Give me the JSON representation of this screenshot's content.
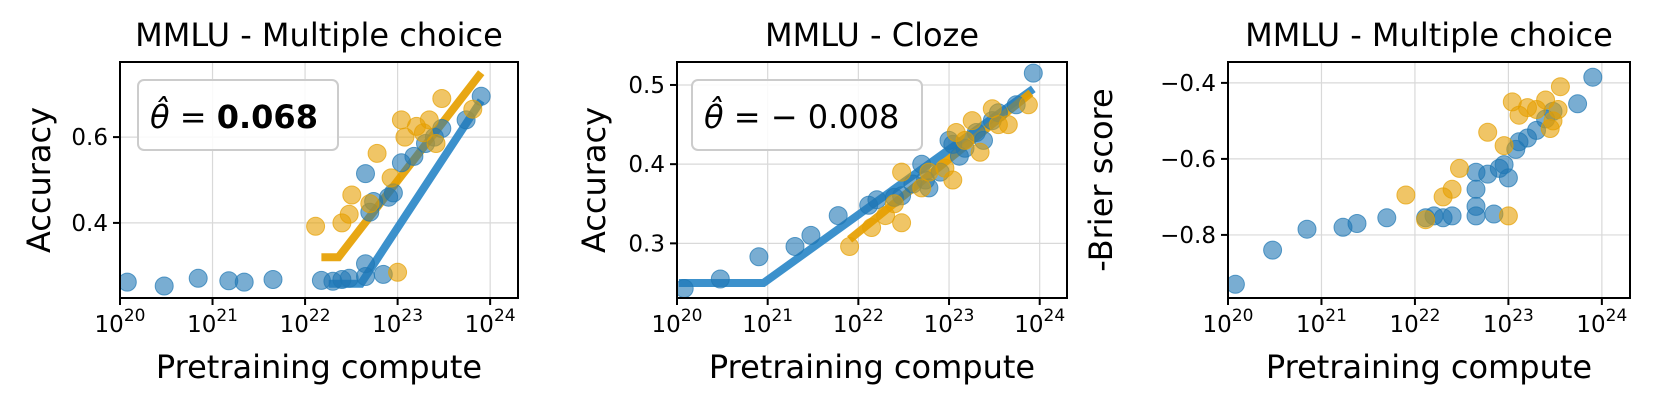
{
  "colors": {
    "series_a": "#1f77b4",
    "series_b": "#e69f00",
    "fit_a": "#2b88c8",
    "fit_b": "#e69f00"
  },
  "xticks": [
    {
      "exp": 20,
      "base": "10",
      "sup": "20"
    },
    {
      "exp": 21,
      "base": "10",
      "sup": "21"
    },
    {
      "exp": 22,
      "base": "10",
      "sup": "22"
    },
    {
      "exp": 23,
      "base": "10",
      "sup": "23"
    },
    {
      "exp": 24,
      "base": "10",
      "sup": "24"
    }
  ],
  "chart_data": [
    {
      "type": "scatter",
      "title": "MMLU - Multiple choice",
      "xlabel": "Pretraining compute",
      "ylabel": "Accuracy",
      "xscale": "log",
      "xlim": [
        1e+20,
        2e+24
      ],
      "ylim": [
        0.225,
        0.775
      ],
      "yticks": [
        {
          "v": 0.4,
          "label": "0.4"
        },
        {
          "v": 0.6,
          "label": "0.6"
        }
      ],
      "grid": true,
      "annotation": {
        "prefix": "θ̂ = ",
        "value": "0.068",
        "bold": true
      },
      "series": [
        {
          "color": "series_a",
          "points": [
            [
              1.2e+20,
              0.262
            ],
            [
              3e+20,
              0.253
            ],
            [
              7e+20,
              0.271
            ],
            [
              1.5e+21,
              0.265
            ],
            [
              2.2e+21,
              0.262
            ],
            [
              4.5e+21,
              0.268
            ],
            [
              1.5e+22,
              0.266
            ],
            [
              2e+22,
              0.264
            ],
            [
              2.5e+22,
              0.268
            ],
            [
              3e+22,
              0.271
            ],
            [
              4.5e+22,
              0.515
            ],
            [
              4.5e+22,
              0.305
            ],
            [
              4.5e+22,
              0.275
            ],
            [
              5e+22,
              0.425
            ],
            [
              5.5e+22,
              0.45
            ],
            [
              7e+22,
              0.28
            ],
            [
              8e+22,
              0.46
            ],
            [
              9e+22,
              0.47
            ],
            [
              1.1e+23,
              0.54
            ],
            [
              1.5e+23,
              0.555
            ],
            [
              2e+23,
              0.585
            ],
            [
              2.5e+23,
              0.6
            ],
            [
              3e+23,
              0.62
            ],
            [
              5.5e+23,
              0.64
            ],
            [
              8e+23,
              0.695
            ]
          ],
          "fit": [
            [
              1.8e+22,
              0.258
            ],
            [
              4e+22,
              0.258
            ],
            [
              8e+23,
              0.685
            ]
          ]
        },
        {
          "color": "series_b",
          "points": [
            [
              1.3e+22,
              0.392
            ],
            [
              2.5e+22,
              0.4
            ],
            [
              3e+22,
              0.42
            ],
            [
              3.2e+22,
              0.465
            ],
            [
              5e+22,
              0.445
            ],
            [
              6e+22,
              0.562
            ],
            [
              8.5e+22,
              0.505
            ],
            [
              1e+23,
              0.285
            ],
            [
              1.1e+23,
              0.64
            ],
            [
              1.2e+23,
              0.6
            ],
            [
              1.6e+23,
              0.625
            ],
            [
              1.9e+23,
              0.61
            ],
            [
              2.2e+23,
              0.64
            ],
            [
              2.6e+23,
              0.585
            ],
            [
              3e+23,
              0.69
            ],
            [
              6.5e+23,
              0.665
            ]
          ],
          "fit": [
            [
              1.5e+22,
              0.32
            ],
            [
              2.3e+22,
              0.32
            ],
            [
              8e+23,
              0.75
            ]
          ]
        }
      ]
    },
    {
      "type": "scatter",
      "title": "MMLU - Cloze",
      "xlabel": "Pretraining compute",
      "ylabel": "Accuracy",
      "xscale": "log",
      "xlim": [
        1e+20,
        2e+24
      ],
      "ylim": [
        0.231,
        0.529
      ],
      "yticks": [
        {
          "v": 0.3,
          "label": "0.3"
        },
        {
          "v": 0.4,
          "label": "0.4"
        },
        {
          "v": 0.5,
          "label": "0.5"
        }
      ],
      "grid": true,
      "annotation": {
        "prefix": "θ̂ = ",
        "value": "− 0.008",
        "bold": false
      },
      "series": [
        {
          "color": "series_a",
          "points": [
            [
              1.2e+20,
              0.243
            ],
            [
              3e+20,
              0.255
            ],
            [
              8e+20,
              0.283
            ],
            [
              2e+21,
              0.296
            ],
            [
              3e+21,
              0.31
            ],
            [
              6e+21,
              0.335
            ],
            [
              1.3e+22,
              0.348
            ],
            [
              1.6e+22,
              0.355
            ],
            [
              2.5e+22,
              0.358
            ],
            [
              3e+22,
              0.36
            ],
            [
              4e+22,
              0.375
            ],
            [
              5e+22,
              0.4
            ],
            [
              5.5e+22,
              0.38
            ],
            [
              6e+22,
              0.37
            ],
            [
              8e+22,
              0.39
            ],
            [
              1e+23,
              0.43
            ],
            [
              1.1e+23,
              0.425
            ],
            [
              1.3e+23,
              0.41
            ],
            [
              1.5e+23,
              0.42
            ],
            [
              2e+23,
              0.44
            ],
            [
              2.4e+23,
              0.43
            ],
            [
              3e+23,
              0.455
            ],
            [
              3.5e+23,
              0.465
            ],
            [
              5.5e+23,
              0.475
            ],
            [
              8.5e+23,
              0.515
            ]
          ],
          "fit": [
            [
              1.05e+20,
              0.25
            ],
            [
              9e+20,
              0.25
            ],
            [
              8.5e+23,
              0.495
            ]
          ]
        },
        {
          "color": "series_b",
          "points": [
            [
              8e+21,
              0.296
            ],
            [
              1.4e+22,
              0.32
            ],
            [
              2e+22,
              0.335
            ],
            [
              2.5e+22,
              0.35
            ],
            [
              3e+22,
              0.39
            ],
            [
              3e+22,
              0.326
            ],
            [
              5e+22,
              0.37
            ],
            [
              6e+22,
              0.39
            ],
            [
              9e+22,
              0.395
            ],
            [
              1.1e+23,
              0.38
            ],
            [
              1.2e+23,
              0.44
            ],
            [
              1.5e+23,
              0.43
            ],
            [
              1.8e+23,
              0.455
            ],
            [
              2.2e+23,
              0.415
            ],
            [
              3e+23,
              0.47
            ],
            [
              3.5e+23,
              0.45
            ],
            [
              4.5e+23,
              0.45
            ],
            [
              7.5e+23,
              0.475
            ]
          ],
          "fit": [
            [
              8e+21,
              0.305
            ],
            [
              8e+23,
              0.49
            ]
          ]
        }
      ]
    },
    {
      "type": "scatter",
      "title": "MMLU - Multiple choice",
      "xlabel": "Pretraining compute",
      "ylabel": "-Brier score",
      "xscale": "log",
      "xlim": [
        1e+20,
        2e+24
      ],
      "ylim": [
        -0.966,
        -0.345
      ],
      "yticks": [
        {
          "v": -0.8,
          "label": "−0.8"
        },
        {
          "v": -0.6,
          "label": "−0.6"
        },
        {
          "v": -0.4,
          "label": "−0.4"
        }
      ],
      "grid": true,
      "series": [
        {
          "color": "series_a",
          "points": [
            [
              1.2e+20,
              -0.93
            ],
            [
              3e+20,
              -0.84
            ],
            [
              7e+20,
              -0.785
            ],
            [
              1.7e+21,
              -0.78
            ],
            [
              2.4e+21,
              -0.77
            ],
            [
              5e+21,
              -0.755
            ],
            [
              1.3e+22,
              -0.755
            ],
            [
              1.6e+22,
              -0.75
            ],
            [
              2e+22,
              -0.755
            ],
            [
              2.5e+22,
              -0.75
            ],
            [
              4.5e+22,
              -0.635
            ],
            [
              4.5e+22,
              -0.68
            ],
            [
              4.5e+22,
              -0.725
            ],
            [
              4.5e+22,
              -0.75
            ],
            [
              6e+22,
              -0.64
            ],
            [
              7e+22,
              -0.745
            ],
            [
              8e+22,
              -0.625
            ],
            [
              9e+22,
              -0.615
            ],
            [
              1e+23,
              -0.65
            ],
            [
              1.2e+23,
              -0.575
            ],
            [
              1.3e+23,
              -0.555
            ],
            [
              1.6e+23,
              -0.545
            ],
            [
              2e+23,
              -0.525
            ],
            [
              2.5e+23,
              -0.495
            ],
            [
              3e+23,
              -0.475
            ],
            [
              5.5e+23,
              -0.455
            ],
            [
              8e+23,
              -0.385
            ]
          ]
        },
        {
          "color": "series_b",
          "points": [
            [
              8e+21,
              -0.695
            ],
            [
              1.3e+22,
              -0.76
            ],
            [
              2e+22,
              -0.7
            ],
            [
              2.5e+22,
              -0.68
            ],
            [
              3e+22,
              -0.625
            ],
            [
              6e+22,
              -0.53
            ],
            [
              9e+22,
              -0.565
            ],
            [
              1e+23,
              -0.75
            ],
            [
              1.1e+23,
              -0.45
            ],
            [
              1.3e+23,
              -0.485
            ],
            [
              1.6e+23,
              -0.465
            ],
            [
              2e+23,
              -0.47
            ],
            [
              2.5e+23,
              -0.445
            ],
            [
              2.8e+23,
              -0.52
            ],
            [
              3e+23,
              -0.5
            ],
            [
              3.4e+23,
              -0.47
            ],
            [
              3.6e+23,
              -0.41
            ]
          ]
        }
      ]
    }
  ]
}
